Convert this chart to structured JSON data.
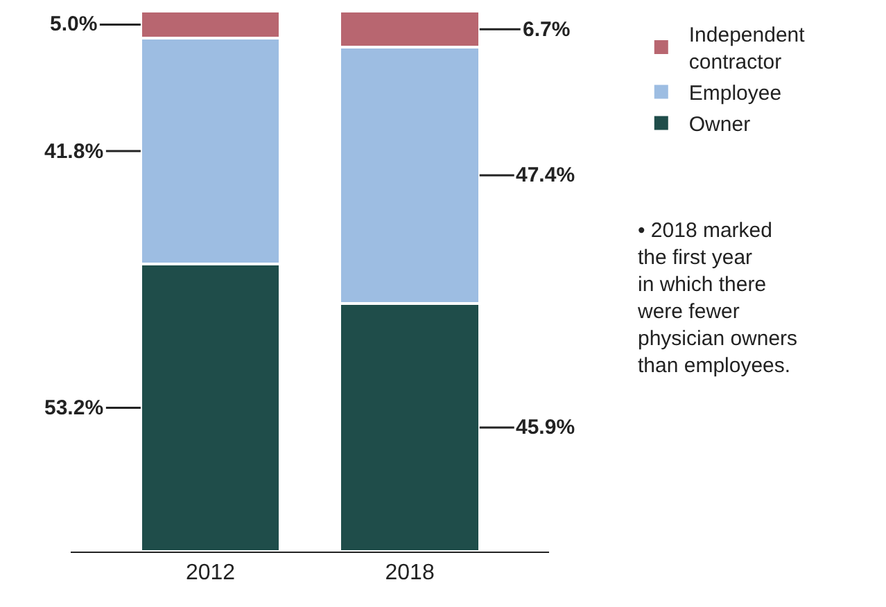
{
  "chart_data": {
    "type": "bar",
    "stacked": true,
    "categories": [
      "2012",
      "2018"
    ],
    "series": [
      {
        "name": "Owner",
        "color": "#1f4d4a",
        "values": [
          53.2,
          45.9
        ],
        "value_labels": [
          "53.2%",
          "45.9%"
        ]
      },
      {
        "name": "Employee",
        "color": "#9dbde2",
        "values": [
          41.8,
          47.4
        ],
        "value_labels": [
          "41.8%",
          "47.4%"
        ]
      },
      {
        "name": "Independent contractor",
        "color": "#b86670",
        "values": [
          5.0,
          6.7
        ],
        "value_labels": [
          "5.0%",
          "6.7%"
        ]
      }
    ],
    "legend": "top right",
    "annotations": [
      "• 2018 marked the first year in which there were fewer physician owners than employees."
    ]
  }
}
